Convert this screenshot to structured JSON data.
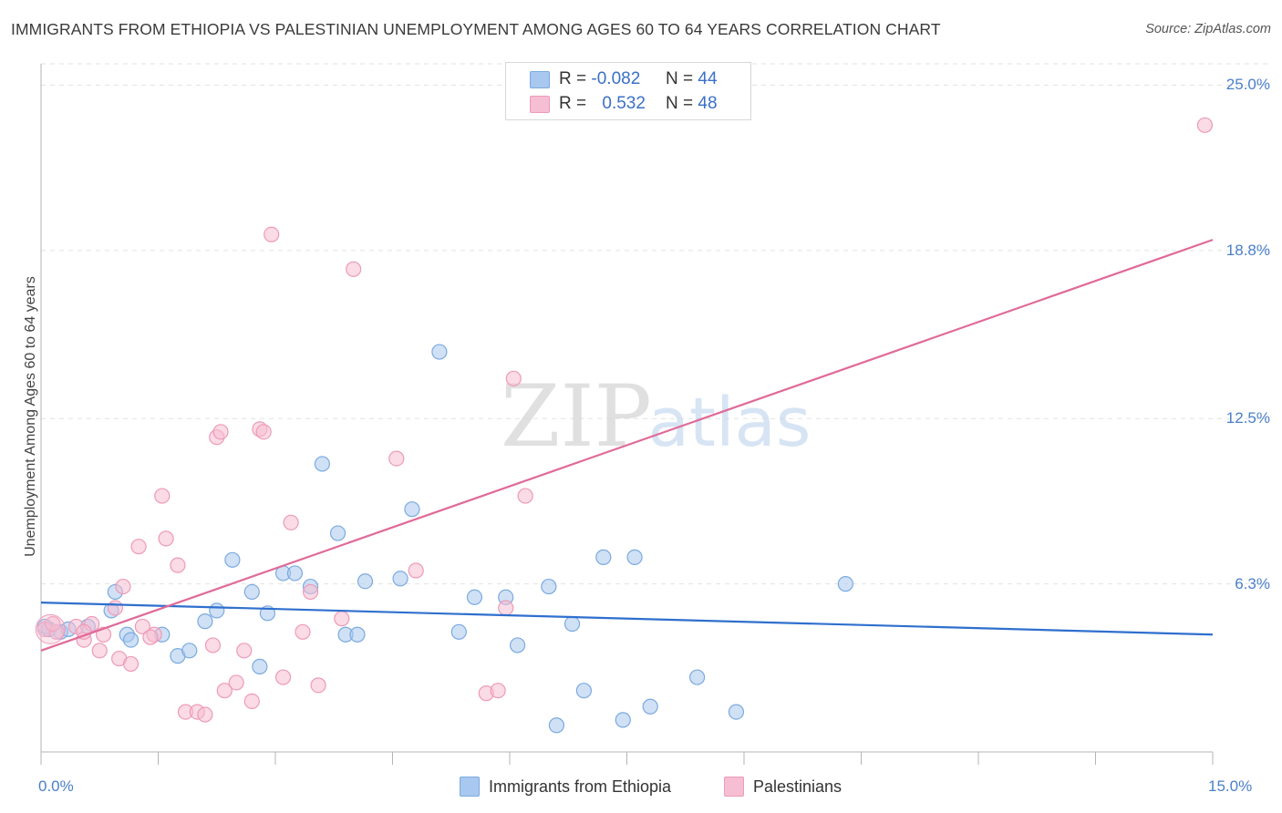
{
  "title": "IMMIGRANTS FROM ETHIOPIA VS PALESTINIAN UNEMPLOYMENT AMONG AGES 60 TO 64 YEARS CORRELATION CHART",
  "source": "Source: ZipAtlas.com",
  "watermark": {
    "zip": "ZIP",
    "atlas": "atlas"
  },
  "colors": {
    "blue_fill": "#a9c8ef",
    "blue_stroke": "#7aaae0",
    "blue_line": "#2f6fce",
    "pink_fill": "#f6bed2",
    "pink_stroke": "#ee9ab8",
    "pink_line": "#e06a98",
    "tick_text": "#4a7fc9"
  },
  "legend": {
    "r_label": "R =",
    "n_label": "N =",
    "series": [
      {
        "r": "-0.082",
        "n": "44"
      },
      {
        "r": "0.532",
        "n": "48"
      }
    ]
  },
  "chart_data": {
    "type": "scatter",
    "xlabel": "",
    "ylabel": "Unemployment Among Ages 60 to 64 years",
    "xlim": [
      0,
      15
    ],
    "ylim": [
      0,
      25.8
    ],
    "x_tick_labels": [
      "0.0%",
      "15.0%"
    ],
    "y_ticks": [
      6.3,
      12.5,
      18.8,
      25.0
    ],
    "y_tick_labels": [
      "6.3%",
      "12.5%",
      "18.8%",
      "25.0%"
    ],
    "grid": true,
    "series": [
      {
        "name": "Immigrants from Ethiopia",
        "color": "blue",
        "trend": {
          "x": [
            0,
            15
          ],
          "y": [
            5.6,
            4.4
          ]
        },
        "points": [
          [
            0.1,
            4.6
          ],
          [
            0.25,
            4.5
          ],
          [
            0.6,
            4.7
          ],
          [
            0.95,
            6.0
          ],
          [
            0.9,
            5.3
          ],
          [
            1.1,
            4.4
          ],
          [
            1.15,
            4.2
          ],
          [
            1.55,
            4.4
          ],
          [
            1.75,
            3.6
          ],
          [
            1.9,
            3.8
          ],
          [
            2.1,
            4.9
          ],
          [
            2.25,
            5.3
          ],
          [
            2.45,
            7.2
          ],
          [
            2.7,
            6.0
          ],
          [
            2.8,
            3.2
          ],
          [
            2.9,
            5.2
          ],
          [
            3.1,
            6.7
          ],
          [
            3.25,
            6.7
          ],
          [
            3.45,
            6.2
          ],
          [
            3.6,
            10.8
          ],
          [
            3.8,
            8.2
          ],
          [
            3.9,
            4.4
          ],
          [
            4.05,
            4.4
          ],
          [
            4.15,
            6.4
          ],
          [
            4.6,
            6.5
          ],
          [
            4.75,
            9.1
          ],
          [
            5.1,
            15.0
          ],
          [
            5.35,
            4.5
          ],
          [
            5.55,
            5.8
          ],
          [
            5.95,
            5.8
          ],
          [
            6.1,
            4.0
          ],
          [
            6.5,
            6.2
          ],
          [
            6.6,
            1.0
          ],
          [
            6.8,
            4.8
          ],
          [
            6.95,
            2.3
          ],
          [
            7.2,
            7.3
          ],
          [
            7.45,
            1.2
          ],
          [
            7.6,
            7.3
          ],
          [
            7.8,
            1.7
          ],
          [
            8.4,
            2.8
          ],
          [
            8.9,
            1.5
          ],
          [
            10.3,
            6.3
          ],
          [
            0.35,
            4.6
          ],
          [
            0.05,
            4.7
          ]
        ]
      },
      {
        "name": "Palestinians",
        "color": "pink",
        "trend": {
          "x": [
            0,
            15
          ],
          "y": [
            3.8,
            19.2
          ]
        },
        "points": [
          [
            0.05,
            4.6
          ],
          [
            0.2,
            4.5
          ],
          [
            0.45,
            4.7
          ],
          [
            0.55,
            4.2
          ],
          [
            0.65,
            4.8
          ],
          [
            0.75,
            3.8
          ],
          [
            0.8,
            4.4
          ],
          [
            0.95,
            5.4
          ],
          [
            1.0,
            3.5
          ],
          [
            1.05,
            6.2
          ],
          [
            1.15,
            3.3
          ],
          [
            1.25,
            7.7
          ],
          [
            1.3,
            4.7
          ],
          [
            1.45,
            4.4
          ],
          [
            1.55,
            9.6
          ],
          [
            1.6,
            8.0
          ],
          [
            1.75,
            7.0
          ],
          [
            1.85,
            1.5
          ],
          [
            2.0,
            1.5
          ],
          [
            2.1,
            1.4
          ],
          [
            2.2,
            4.0
          ],
          [
            2.25,
            11.8
          ],
          [
            2.3,
            12.0
          ],
          [
            2.35,
            2.3
          ],
          [
            2.5,
            2.6
          ],
          [
            2.6,
            3.8
          ],
          [
            2.7,
            1.9
          ],
          [
            2.8,
            12.1
          ],
          [
            2.85,
            12.0
          ],
          [
            2.95,
            19.4
          ],
          [
            3.1,
            2.8
          ],
          [
            3.2,
            8.6
          ],
          [
            3.35,
            4.5
          ],
          [
            3.45,
            6.0
          ],
          [
            3.55,
            2.5
          ],
          [
            3.85,
            5.0
          ],
          [
            4.0,
            18.1
          ],
          [
            4.55,
            11.0
          ],
          [
            4.8,
            6.8
          ],
          [
            5.7,
            2.2
          ],
          [
            5.85,
            2.3
          ],
          [
            5.95,
            5.4
          ],
          [
            6.05,
            14.0
          ],
          [
            6.2,
            9.6
          ],
          [
            14.9,
            23.5
          ],
          [
            1.4,
            4.3
          ],
          [
            0.55,
            4.5
          ],
          [
            0.15,
            4.8
          ]
        ]
      }
    ]
  }
}
